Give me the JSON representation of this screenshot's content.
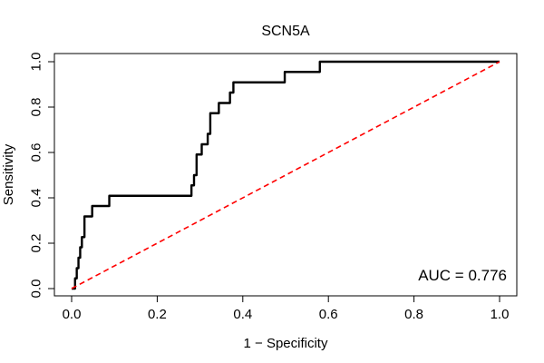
{
  "chart_data": {
    "type": "line",
    "title": "SCN5A",
    "xlabel": "1 − Specificity",
    "ylabel": "Sensitivity",
    "xlim": [
      0,
      1
    ],
    "ylim": [
      0,
      1
    ],
    "xticks": [
      0.0,
      0.2,
      0.4,
      0.6,
      0.8,
      1.0
    ],
    "yticks": [
      0.0,
      0.2,
      0.4,
      0.6,
      0.8,
      1.0
    ],
    "xtick_labels": [
      "0.0",
      "0.2",
      "0.4",
      "0.6",
      "0.8",
      "1.0"
    ],
    "ytick_labels": [
      "0.0",
      "0.2",
      "0.4",
      "0.6",
      "0.8",
      "1.0"
    ],
    "annotation": "AUC = 0.776",
    "series": [
      {
        "name": "ROC",
        "color": "#000000",
        "x": [
          0.0,
          0.008,
          0.008,
          0.012,
          0.012,
          0.016,
          0.016,
          0.02,
          0.02,
          0.024,
          0.024,
          0.03,
          0.03,
          0.04,
          0.048,
          0.048,
          0.088,
          0.088,
          0.28,
          0.28,
          0.286,
          0.286,
          0.292,
          0.292,
          0.304,
          0.304,
          0.318,
          0.318,
          0.324,
          0.324,
          0.344,
          0.344,
          0.37,
          0.37,
          0.378,
          0.378,
          0.42,
          0.42,
          0.498,
          0.498,
          0.58,
          0.58,
          1.0
        ],
        "y": [
          0.0,
          0.0,
          0.045,
          0.045,
          0.09,
          0.09,
          0.136,
          0.136,
          0.182,
          0.182,
          0.227,
          0.227,
          0.318,
          0.318,
          0.318,
          0.364,
          0.364,
          0.409,
          0.409,
          0.455,
          0.455,
          0.5,
          0.5,
          0.591,
          0.591,
          0.636,
          0.636,
          0.682,
          0.682,
          0.773,
          0.773,
          0.818,
          0.818,
          0.864,
          0.864,
          0.909,
          0.909,
          0.909,
          0.909,
          0.955,
          0.955,
          1.0,
          1.0
        ]
      },
      {
        "name": "Reference",
        "color": "#ff0000",
        "style": "dashed",
        "x": [
          0,
          1
        ],
        "y": [
          0,
          1
        ]
      }
    ]
  }
}
